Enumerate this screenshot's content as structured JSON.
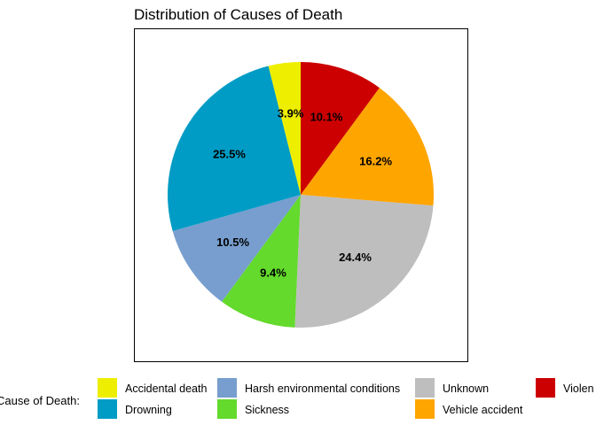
{
  "chart_data": {
    "type": "pie",
    "title": "Distribution of Causes of Death",
    "legend_title": "Cause of Death:",
    "legend_placement": "bottom",
    "slices": [
      {
        "name": "Violent",
        "value": 10.1,
        "label": "10.1%",
        "color": "#CC0000"
      },
      {
        "name": "Vehicle accident",
        "value": 16.2,
        "label": "16.2%",
        "color": "#FFA500"
      },
      {
        "name": "Unknown",
        "value": 24.4,
        "label": "24.4%",
        "color": "#BEBEBE"
      },
      {
        "name": "Sickness",
        "value": 9.4,
        "label": "9.4%",
        "color": "#63DA2C"
      },
      {
        "name": "Harsh environmental conditions",
        "value": 10.5,
        "label": "10.5%",
        "color": "#779ECE"
      },
      {
        "name": "Drowning",
        "value": 25.5,
        "label": "25.5%",
        "color": "#009CC5"
      },
      {
        "name": "Accidental death",
        "value": 3.9,
        "label": "3.9%",
        "color": "#EEEE00"
      }
    ],
    "legend": [
      {
        "name": "Accidental death",
        "label": "Accidental death",
        "color": "#EEEE00"
      },
      {
        "name": "Drowning",
        "label": "Drowning",
        "color": "#009CC5"
      },
      {
        "name": "Harsh environmental conditions",
        "label": "Harsh environmental conditions",
        "color": "#779ECE"
      },
      {
        "name": "Sickness",
        "label": "Sickness",
        "color": "#63DA2C"
      },
      {
        "name": "Unknown",
        "label": "Unknown",
        "color": "#BEBEBE"
      },
      {
        "name": "Vehicle accident",
        "label": "Vehicle accident",
        "color": "#FFA500"
      },
      {
        "name": "Violent",
        "label": "Violen",
        "color": "#CC0000"
      }
    ]
  }
}
